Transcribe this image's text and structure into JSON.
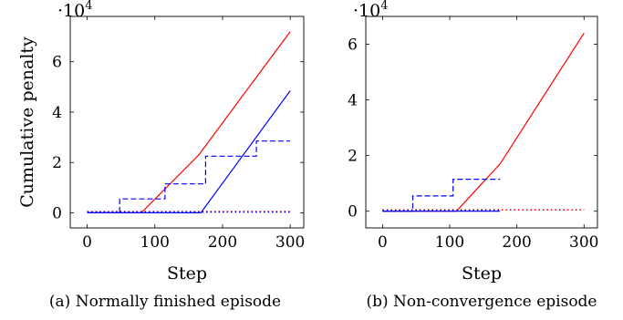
{
  "chart_data": [
    {
      "type": "line",
      "caption": "(a) Normally finished episode",
      "xlabel": "Step",
      "ylabel": "Cumulative penalty",
      "scale_label_base": "·10",
      "scale_label_exp": "4",
      "xlim": [
        -25,
        320
      ],
      "ylim": [
        -0.6,
        7.8
      ],
      "xticks": [
        0,
        100,
        200,
        300
      ],
      "yticks": [
        0,
        2,
        4,
        6
      ],
      "series": [
        {
          "color": "#ff0000",
          "style": "solid",
          "x": [
            0,
            80,
            165,
            300
          ],
          "y": [
            0,
            0,
            2.3,
            7.2
          ]
        },
        {
          "color": "#0000ff",
          "style": "solid",
          "x": [
            0,
            168,
            300
          ],
          "y": [
            0,
            0,
            4.85
          ]
        },
        {
          "color": "#0000ff",
          "style": "dashed",
          "x": [
            0,
            48,
            48,
            115,
            115,
            175,
            175,
            250,
            250,
            300
          ],
          "y": [
            0,
            0,
            0.55,
            0.55,
            1.15,
            1.15,
            2.25,
            2.25,
            2.85,
            2.85
          ]
        },
        {
          "color": "#ff0000",
          "style": "dotted",
          "x": [
            0,
            300
          ],
          "y": [
            0.05,
            0.05
          ]
        },
        {
          "color": "#0000ff",
          "style": "dotted",
          "x": [
            0,
            300
          ],
          "y": [
            0.03,
            0.03
          ]
        }
      ]
    },
    {
      "type": "line",
      "caption": "(b) Non-convergence episode",
      "xlabel": "Step",
      "ylabel": "",
      "scale_label_base": "·10",
      "scale_label_exp": "4",
      "xlim": [
        -25,
        320
      ],
      "ylim": [
        -0.6,
        7.0
      ],
      "xticks": [
        0,
        100,
        200,
        300
      ],
      "yticks": [
        0,
        2,
        4,
        6
      ],
      "series": [
        {
          "color": "#ff0000",
          "style": "solid",
          "x": [
            0,
            110,
            175,
            300
          ],
          "y": [
            0,
            0,
            1.7,
            6.4
          ]
        },
        {
          "color": "#0000ff",
          "style": "solid",
          "x": [
            0,
            175
          ],
          "y": [
            0,
            0
          ]
        },
        {
          "color": "#0000ff",
          "style": "dashed",
          "x": [
            0,
            45,
            45,
            105,
            105,
            175
          ],
          "y": [
            0,
            0,
            0.55,
            0.55,
            1.15,
            1.15
          ]
        },
        {
          "color": "#ff0000",
          "style": "dotted",
          "x": [
            0,
            300
          ],
          "y": [
            0.05,
            0.05
          ]
        },
        {
          "color": "#0000ff",
          "style": "dotted",
          "x": [
            0,
            175
          ],
          "y": [
            0.03,
            0.03
          ]
        }
      ]
    }
  ]
}
